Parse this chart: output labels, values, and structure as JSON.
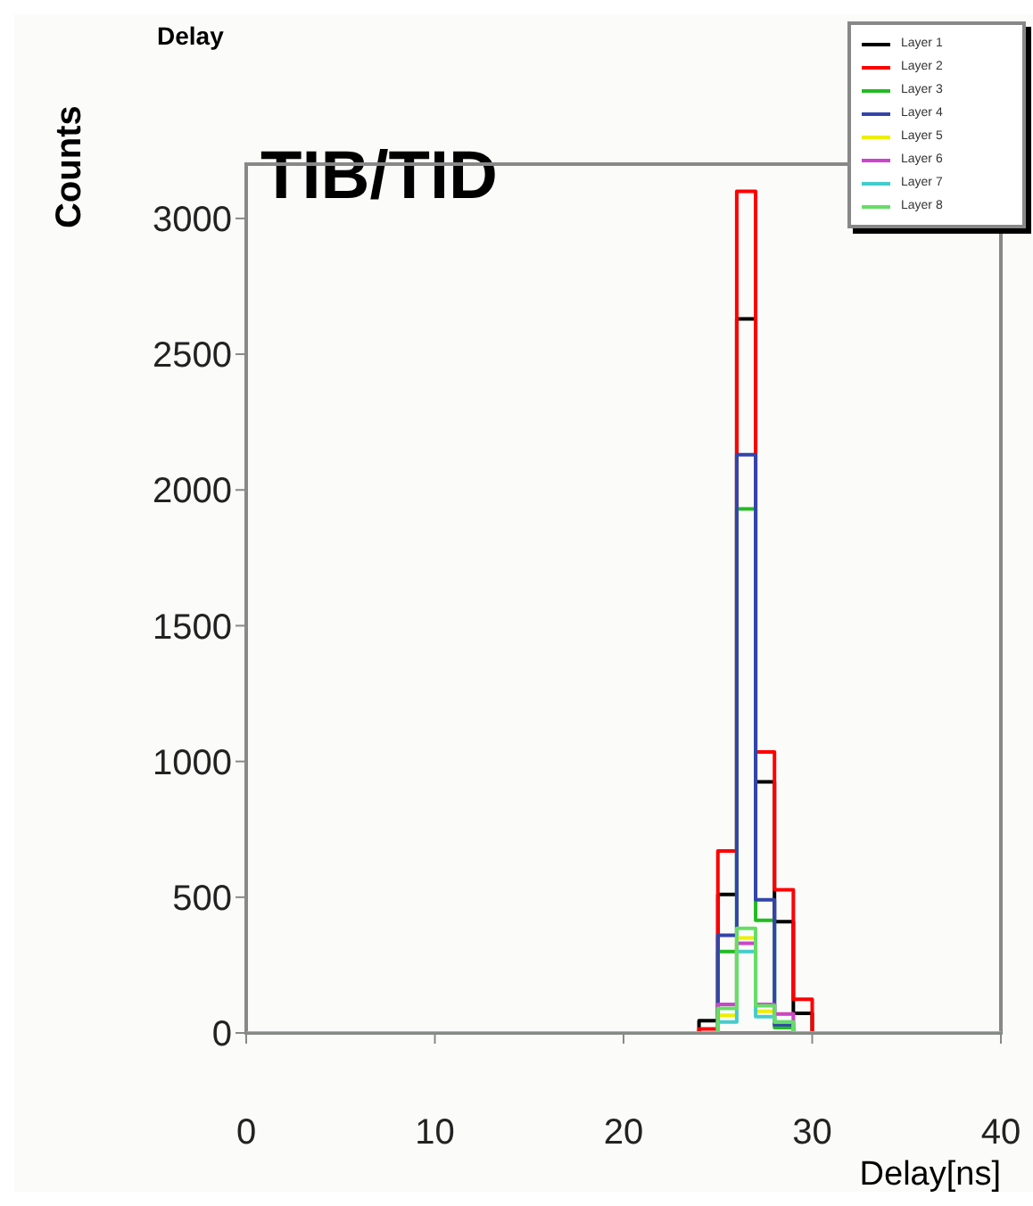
{
  "chart_data": {
    "type": "histogram",
    "title": "Delay",
    "xlabel": "Delay[ns]",
    "ylabel": "Counts",
    "annotations": [
      "TIB/TID"
    ],
    "bins": [
      0,
      1,
      2,
      3,
      4,
      5,
      6,
      7,
      8,
      9,
      10,
      11,
      12,
      13,
      14,
      15,
      16,
      17,
      18,
      19,
      20,
      21,
      22,
      23,
      24,
      25,
      26,
      27,
      28,
      29,
      30,
      31,
      32,
      33,
      34,
      35,
      36,
      37,
      38,
      39,
      40
    ],
    "series": [
      {
        "name": "Layer 1",
        "color": "#000000",
        "values": [
          0,
          0,
          0,
          0,
          0,
          0,
          0,
          0,
          0,
          0,
          0,
          0,
          0,
          0,
          0,
          0,
          0,
          0,
          0,
          0,
          0,
          0,
          0,
          0,
          45,
          510,
          2630,
          925,
          410,
          72,
          0,
          0,
          0,
          0,
          0,
          0,
          0,
          0,
          0,
          0
        ]
      },
      {
        "name": "Layer 2",
        "color": "#ff0000",
        "values": [
          0,
          0,
          0,
          0,
          0,
          0,
          0,
          0,
          0,
          0,
          0,
          0,
          0,
          0,
          0,
          0,
          0,
          0,
          0,
          0,
          0,
          0,
          0,
          0,
          15,
          670,
          3100,
          1035,
          527,
          124,
          0,
          0,
          0,
          0,
          0,
          0,
          0,
          0,
          0,
          0
        ]
      },
      {
        "name": "Layer 3",
        "color": "#22bb22",
        "values": [
          0,
          0,
          0,
          0,
          0,
          0,
          0,
          0,
          0,
          0,
          0,
          0,
          0,
          0,
          0,
          0,
          0,
          0,
          0,
          0,
          0,
          0,
          0,
          0,
          0,
          300,
          1930,
          415,
          20,
          0,
          0,
          0,
          0,
          0,
          0,
          0,
          0,
          0,
          0,
          0
        ]
      },
      {
        "name": "Layer 4",
        "color": "#3344aa",
        "values": [
          0,
          0,
          0,
          0,
          0,
          0,
          0,
          0,
          0,
          0,
          0,
          0,
          0,
          0,
          0,
          0,
          0,
          0,
          0,
          0,
          0,
          0,
          0,
          0,
          0,
          360,
          2130,
          490,
          30,
          0,
          0,
          0,
          0,
          0,
          0,
          0,
          0,
          0,
          0,
          0
        ]
      },
      {
        "name": "Layer 5",
        "color": "#eeee00",
        "values": [
          0,
          0,
          0,
          0,
          0,
          0,
          0,
          0,
          0,
          0,
          0,
          0,
          0,
          0,
          0,
          0,
          0,
          0,
          0,
          0,
          0,
          0,
          0,
          0,
          0,
          65,
          350,
          80,
          70,
          0,
          0,
          0,
          0,
          0,
          0,
          0,
          0,
          0,
          0,
          0
        ]
      },
      {
        "name": "Layer 6",
        "color": "#cc44cc",
        "values": [
          0,
          0,
          0,
          0,
          0,
          0,
          0,
          0,
          0,
          0,
          0,
          0,
          0,
          0,
          0,
          0,
          0,
          0,
          0,
          0,
          0,
          0,
          0,
          0,
          0,
          105,
          330,
          105,
          70,
          0,
          0,
          0,
          0,
          0,
          0,
          0,
          0,
          0,
          0,
          0
        ]
      },
      {
        "name": "Layer 7",
        "color": "#44cccc",
        "values": [
          0,
          0,
          0,
          0,
          0,
          0,
          0,
          0,
          0,
          0,
          0,
          0,
          0,
          0,
          0,
          0,
          0,
          0,
          0,
          0,
          0,
          0,
          0,
          0,
          0,
          40,
          300,
          60,
          40,
          0,
          0,
          0,
          0,
          0,
          0,
          0,
          0,
          0,
          0,
          0
        ]
      },
      {
        "name": "Layer 8",
        "color": "#66dd66",
        "values": [
          0,
          0,
          0,
          0,
          0,
          0,
          0,
          0,
          0,
          0,
          0,
          0,
          0,
          0,
          0,
          0,
          0,
          0,
          0,
          0,
          0,
          0,
          0,
          0,
          0,
          90,
          385,
          100,
          40,
          0,
          0,
          0,
          0,
          0,
          0,
          0,
          0,
          0,
          0,
          0
        ]
      }
    ],
    "xlim": [
      0,
      40
    ],
    "xticks": [
      0,
      10,
      20,
      30,
      40
    ],
    "ylim": [
      0,
      3200
    ],
    "yticks": [
      0,
      500,
      1000,
      1500,
      2000,
      2500,
      3000
    ],
    "grid": false,
    "legend": "top right",
    "marker": "none"
  }
}
